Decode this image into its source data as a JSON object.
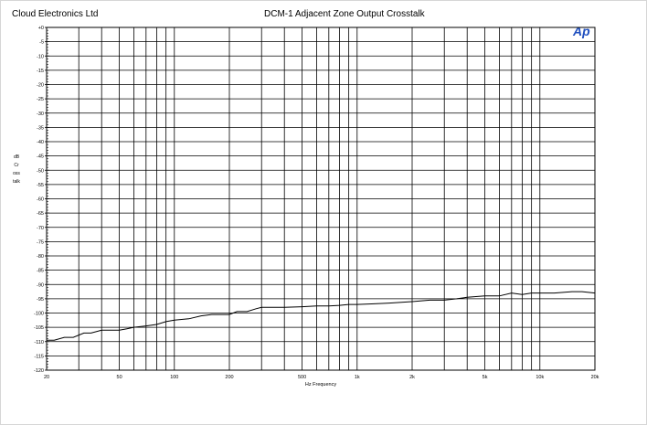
{
  "header": {
    "company": "Cloud Electronics Ltd",
    "title": "DCM-1 Adjacent Zone Output Crosstalk",
    "logo_text": "Ap"
  },
  "chart_data": {
    "type": "line",
    "title": "DCM-1 Adjacent Zone Output Crosstalk",
    "xlabel": "Hz Frequency",
    "ylabel": "dB Crosstalk",
    "x_scale": "log",
    "xlim": [
      20,
      20000
    ],
    "ylim": [
      -120,
      0
    ],
    "x_ticks": [
      {
        "value": 20,
        "label": "20"
      },
      {
        "value": 50,
        "label": "50"
      },
      {
        "value": 100,
        "label": "100"
      },
      {
        "value": 200,
        "label": "200"
      },
      {
        "value": 500,
        "label": "500"
      },
      {
        "value": 1000,
        "label": "1k"
      },
      {
        "value": 2000,
        "label": "2k"
      },
      {
        "value": 5000,
        "label": "5k"
      },
      {
        "value": 10000,
        "label": "10k"
      },
      {
        "value": 20000,
        "label": "20k"
      }
    ],
    "y_tick_labels": [
      "+0",
      "-5",
      "-10",
      "-15",
      "-20",
      "-25",
      "-30",
      "-35",
      "-40",
      "-45",
      "-50",
      "-55",
      "-60",
      "-65",
      "-70",
      "-75",
      "-80",
      "-85",
      "-90",
      "-95",
      "-100",
      "-105",
      "-110",
      "-115",
      "-120"
    ],
    "grid": true,
    "series": [
      {
        "color": "#000000",
        "x": [
          20,
          22,
          25,
          28,
          32,
          35,
          40,
          45,
          50,
          55,
          60,
          70,
          80,
          90,
          100,
          120,
          140,
          160,
          200,
          220,
          250,
          280,
          300,
          350,
          400,
          500,
          600,
          700,
          800,
          900,
          1000,
          1200,
          1500,
          2000,
          2500,
          3000,
          3500,
          4000,
          5000,
          6000,
          7000,
          8000,
          9000,
          10000,
          12000,
          15000,
          17000,
          20000
        ],
        "y": [
          -109.5,
          -109.5,
          -108.5,
          -108.5,
          -107,
          -107,
          -106,
          -106,
          -106,
          -105.5,
          -105,
          -104.5,
          -104,
          -103,
          -102.5,
          -102,
          -101,
          -100.5,
          -100.5,
          -99.5,
          -99.5,
          -98.5,
          -98,
          -98,
          -98,
          -97.8,
          -97.5,
          -97.5,
          -97.3,
          -97,
          -97,
          -96.8,
          -96.5,
          -96,
          -95.5,
          -95.5,
          -95,
          -94.5,
          -94,
          -94,
          -93,
          -93.5,
          -93,
          -93,
          -93,
          -92.5,
          -92.5,
          -93
        ]
      }
    ]
  }
}
